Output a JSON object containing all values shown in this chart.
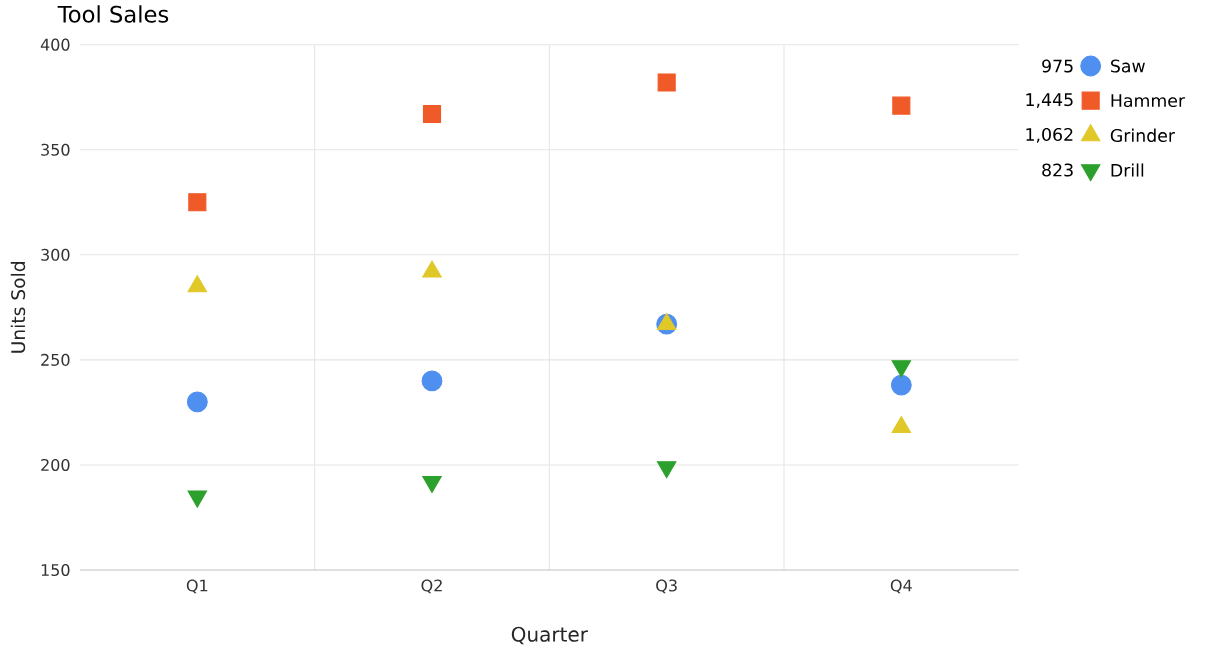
{
  "chart_data": {
    "type": "scatter",
    "title": "Tool Sales",
    "xlabel": "Quarter",
    "ylabel": "Units Sold",
    "categories": [
      "Q1",
      "Q2",
      "Q3",
      "Q4"
    ],
    "series": [
      {
        "name": "Saw",
        "color": "#4f8ff0",
        "marker": "circle",
        "values": [
          230,
          240,
          267,
          238
        ]
      },
      {
        "name": "Hammer",
        "color": "#f05a28",
        "marker": "square",
        "values": [
          325,
          367,
          382,
          371
        ]
      },
      {
        "name": "Grinder",
        "color": "#e0c828",
        "marker": "triangle",
        "values": [
          285,
          292,
          267,
          218
        ]
      },
      {
        "name": "Drill",
        "color": "#2ca02c",
        "marker": "triangle-down",
        "values": [
          185,
          192,
          199,
          247
        ]
      }
    ],
    "totals": [
      "975",
      "1,445",
      "1,062",
      "823"
    ],
    "ylim": [
      150,
      400
    ],
    "yticks": [
      150,
      200,
      250,
      300,
      350,
      400
    ],
    "grid": true,
    "legend": "right"
  }
}
